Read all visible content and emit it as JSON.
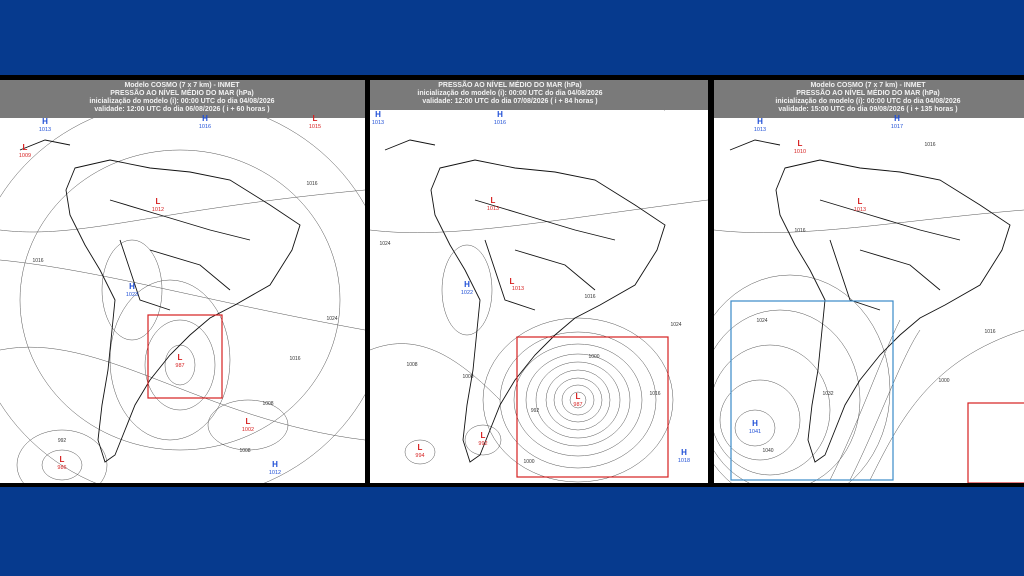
{
  "panels": [
    {
      "header": [
        "Modelo COSMO (7 x 7 km) - INMET",
        "PRESSÃO AO NÍVEL MÉDIO DO MAR (hPa)",
        "inicialização do modelo (i): 00:00 UTC do dia 04/08/2026",
        "validade: 12:00 UTC do dia 06/08/2026 ( i + 60 horas )"
      ],
      "markers": [
        {
          "symbol": "H",
          "value": "1013"
        },
        {
          "symbol": "H",
          "value": "1016"
        },
        {
          "symbol": "L",
          "value": "1015"
        },
        {
          "symbol": "L",
          "value": "1009"
        },
        {
          "symbol": "L",
          "value": "1012"
        },
        {
          "symbol": "H",
          "value": "1023"
        },
        {
          "symbol": "L",
          "value": "987"
        },
        {
          "symbol": "L",
          "value": "1002"
        },
        {
          "symbol": "L",
          "value": "986"
        },
        {
          "symbol": "H",
          "value": "1012"
        }
      ],
      "contour_labels": [
        "1016",
        "1016",
        "1024",
        "1016",
        "1008",
        "992",
        "1008"
      ]
    },
    {
      "header": [
        "PRESSÃO AO NÍVEL MÉDIO DO MAR (hPa)",
        "inicialização do modelo (i): 00:00 UTC do dia 04/08/2026",
        "validade: 12:00 UTC do dia 07/08/2026 ( i + 84 horas )"
      ],
      "markers": [
        {
          "symbol": "H",
          "value": "1013"
        },
        {
          "symbol": "H",
          "value": "1016"
        },
        {
          "symbol": "L",
          "value": "1013"
        },
        {
          "symbol": "H",
          "value": "1022"
        },
        {
          "symbol": "L",
          "value": "1013"
        },
        {
          "symbol": "L",
          "value": "987"
        },
        {
          "symbol": "L",
          "value": "992"
        },
        {
          "symbol": "L",
          "value": "994"
        },
        {
          "symbol": "H",
          "value": "1018"
        }
      ],
      "contour_labels": [
        "1024",
        "1008",
        "1008",
        "1016",
        "1024",
        "1000",
        "992",
        "1000",
        "1016"
      ]
    },
    {
      "header": [
        "Modelo COSMO (7 x 7 km) - INMET",
        "PRESSÃO AO NÍVEL MÉDIO DO MAR (hPa)",
        "inicialização do modelo (i): 00:00 UTC do dia 04/08/2026",
        "validade: 15:00 UTC do dia 09/08/2026 ( i + 135 horas )"
      ],
      "markers": [
        {
          "symbol": "H",
          "value": "1013"
        },
        {
          "symbol": "H",
          "value": "1017"
        },
        {
          "symbol": "L",
          "value": "1010"
        },
        {
          "symbol": "L",
          "value": "1013"
        },
        {
          "symbol": "H",
          "value": "1041"
        }
      ],
      "contour_labels": [
        "1016",
        "1016",
        "1024",
        "1016",
        "1032",
        "1000",
        "1040"
      ]
    }
  ]
}
